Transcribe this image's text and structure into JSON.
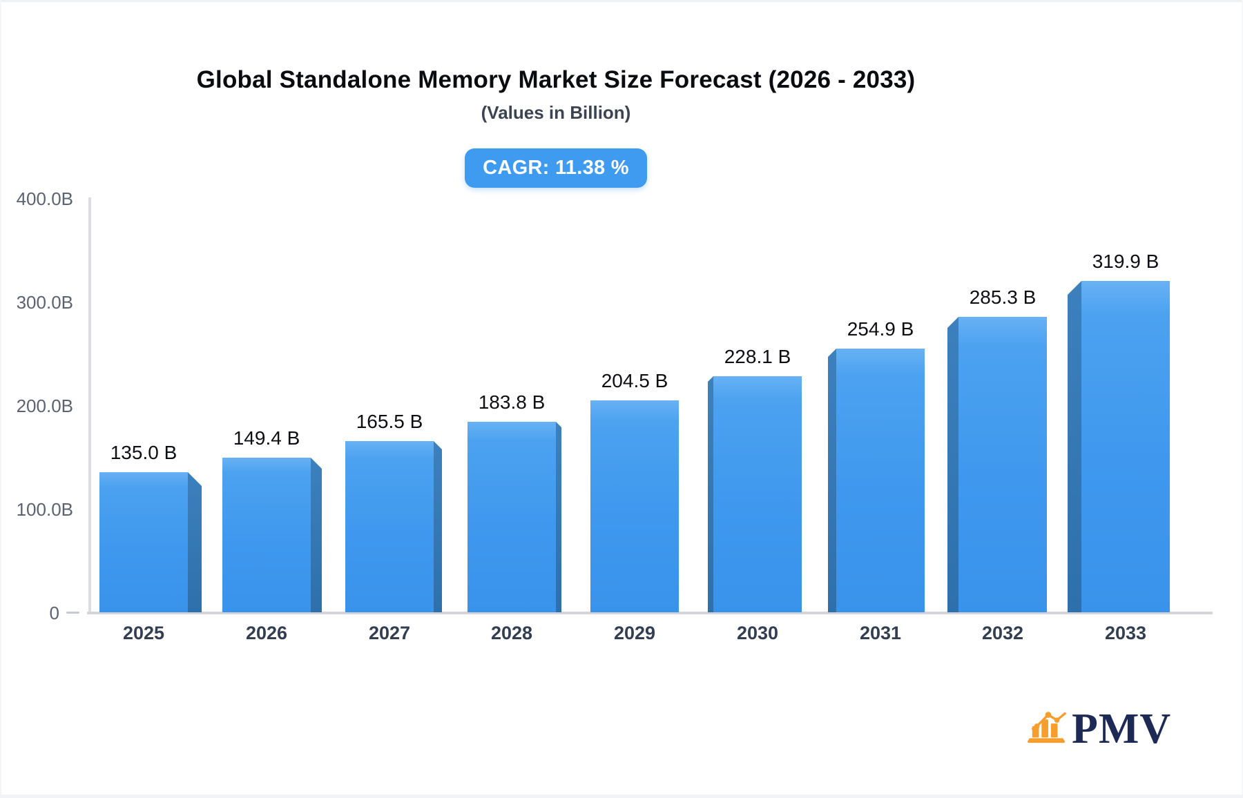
{
  "header": {
    "title": "Global Standalone Memory Market Size Forecast (2026 - 2033)",
    "subtitle": "(Values in Billion)",
    "cagr_badge": "CAGR: 11.38 %"
  },
  "chart_data": {
    "type": "bar",
    "title": "Global Standalone Memory Market Size Forecast (2026 - 2033)",
    "subtitle": "(Values in Billion)",
    "cagr_percent": 11.38,
    "categories": [
      "2025",
      "2026",
      "2027",
      "2028",
      "2029",
      "2030",
      "2031",
      "2032",
      "2033"
    ],
    "values": [
      135.0,
      149.4,
      165.5,
      183.8,
      204.5,
      228.1,
      254.9,
      285.3,
      319.9
    ],
    "value_labels": [
      "135.0 B",
      "149.4 B",
      "165.5 B",
      "183.8 B",
      "204.5 B",
      "228.1 B",
      "254.9 B",
      "285.3 B",
      "319.9 B"
    ],
    "xlabel": "",
    "ylabel": "",
    "ylim": [
      0,
      400
    ],
    "yticks": [
      "400.0B",
      "300.0B",
      "200.0B",
      "100.0B",
      "0"
    ],
    "grid": false,
    "legend": false,
    "bar_color": "#3f98ee",
    "bar_side_color": "#2d70ab",
    "axis_color": "#d3d5d9"
  },
  "logo": {
    "text": "PMV",
    "icon": "bar-chart-growth-icon",
    "icon_color": "#f59e2e",
    "text_color": "#1e2a56"
  }
}
